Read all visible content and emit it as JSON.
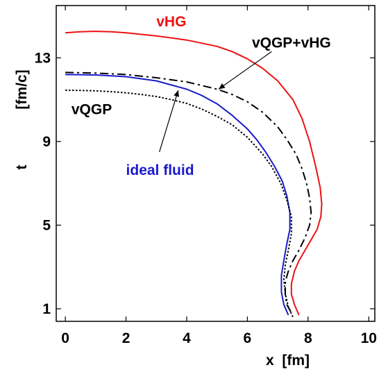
{
  "chart_data": {
    "type": "line",
    "xlabel": "x  [fm]",
    "ylabel_var": "t",
    "ylabel_unit": "[fm/c]",
    "xlim": [
      -0.3,
      10.2
    ],
    "ylim": [
      0.4,
      15.5
    ],
    "xticks": [
      0,
      2,
      4,
      6,
      8,
      10
    ],
    "yticks": [
      1,
      5,
      9,
      13
    ],
    "grid": false,
    "series": [
      {
        "name": "vHG",
        "color": "#ee1111",
        "dash": "solid",
        "x": [
          0,
          0.5,
          1.0,
          1.5,
          2.0,
          3.0,
          4.0,
          5.0,
          5.5,
          6.0,
          6.5,
          7.0,
          7.5,
          7.8,
          8.05,
          8.25,
          8.4,
          8.45,
          8.42,
          8.3,
          8.1,
          7.9,
          7.7,
          7.55,
          7.45,
          7.45,
          7.55,
          7.7
        ],
        "y": [
          14.2,
          14.25,
          14.27,
          14.25,
          14.2,
          14.05,
          13.85,
          13.55,
          13.3,
          12.95,
          12.5,
          11.9,
          11.0,
          10.1,
          9.0,
          7.8,
          6.8,
          6.0,
          5.4,
          4.8,
          4.3,
          3.8,
          3.3,
          2.8,
          2.2,
          1.7,
          1.2,
          0.7
        ]
      },
      {
        "name": "vQGP+vHG",
        "color": "#000000",
        "dash": "dashdot",
        "x": [
          0,
          1.0,
          2.0,
          3.0,
          4.0,
          5.0,
          5.5,
          6.0,
          6.5,
          7.0,
          7.3,
          7.6,
          7.8,
          7.95,
          8.05,
          8.1,
          8.05,
          7.9,
          7.7,
          7.5,
          7.35,
          7.25,
          7.25,
          7.3,
          7.45
        ],
        "y": [
          12.3,
          12.27,
          12.2,
          12.05,
          11.85,
          11.5,
          11.25,
          10.9,
          10.4,
          9.7,
          9.1,
          8.4,
          7.7,
          7.0,
          6.3,
          5.6,
          5.0,
          4.4,
          3.8,
          3.3,
          2.8,
          2.3,
          1.7,
          1.2,
          0.8
        ]
      },
      {
        "name": "ideal fluid",
        "color": "#1a1acc",
        "dash": "solid",
        "x": [
          0,
          1.0,
          2.0,
          3.0,
          3.5,
          4.0,
          4.5,
          5.0,
          5.5,
          6.0,
          6.3,
          6.6,
          6.9,
          7.15,
          7.3,
          7.4,
          7.4,
          7.3,
          7.2,
          7.12,
          7.12,
          7.2,
          7.35
        ],
        "y": [
          12.2,
          12.18,
          12.1,
          11.9,
          11.7,
          11.5,
          11.2,
          10.8,
          10.25,
          9.6,
          9.1,
          8.5,
          7.8,
          7.1,
          6.4,
          5.6,
          4.8,
          4.1,
          3.3,
          2.6,
          1.8,
          1.2,
          0.7
        ]
      },
      {
        "name": "vQGP",
        "color": "#000000",
        "dash": "dotted",
        "x": [
          0,
          0.5,
          1.0,
          1.5,
          2.0,
          2.5,
          3.0,
          3.5,
          4.0,
          4.5,
          5.0,
          5.5,
          6.0,
          6.5,
          6.8,
          7.1,
          7.3,
          7.45,
          7.45,
          7.35,
          7.25,
          7.2,
          7.25,
          7.35,
          7.5
        ],
        "y": [
          11.45,
          11.44,
          11.42,
          11.38,
          11.33,
          11.25,
          11.15,
          11.0,
          10.82,
          10.55,
          10.2,
          9.8,
          9.2,
          8.4,
          7.8,
          7.0,
          6.2,
          5.4,
          4.6,
          3.8,
          3.1,
          2.4,
          1.7,
          1.1,
          0.6
        ]
      }
    ],
    "annotations": [
      {
        "text": "vHG",
        "color": "#ee1111",
        "x": 3.0,
        "y": 14.5
      },
      {
        "text": "vQGP+vHG",
        "color": "#000000",
        "x": 6.15,
        "y": 13.5
      },
      {
        "text": "vQGP",
        "color": "#000000",
        "x": 0.2,
        "y": 10.3
      },
      {
        "text": "ideal fluid",
        "color": "#1a1acc",
        "x": 2.0,
        "y": 7.4
      }
    ],
    "arrows": [
      {
        "target": "vQGP+vHG",
        "from": [
          6.8,
          13.3
        ],
        "to": [
          5.05,
          11.5
        ]
      },
      {
        "target": "ideal fluid",
        "from": [
          3.1,
          8.5
        ],
        "to": [
          3.72,
          11.45
        ]
      }
    ]
  }
}
